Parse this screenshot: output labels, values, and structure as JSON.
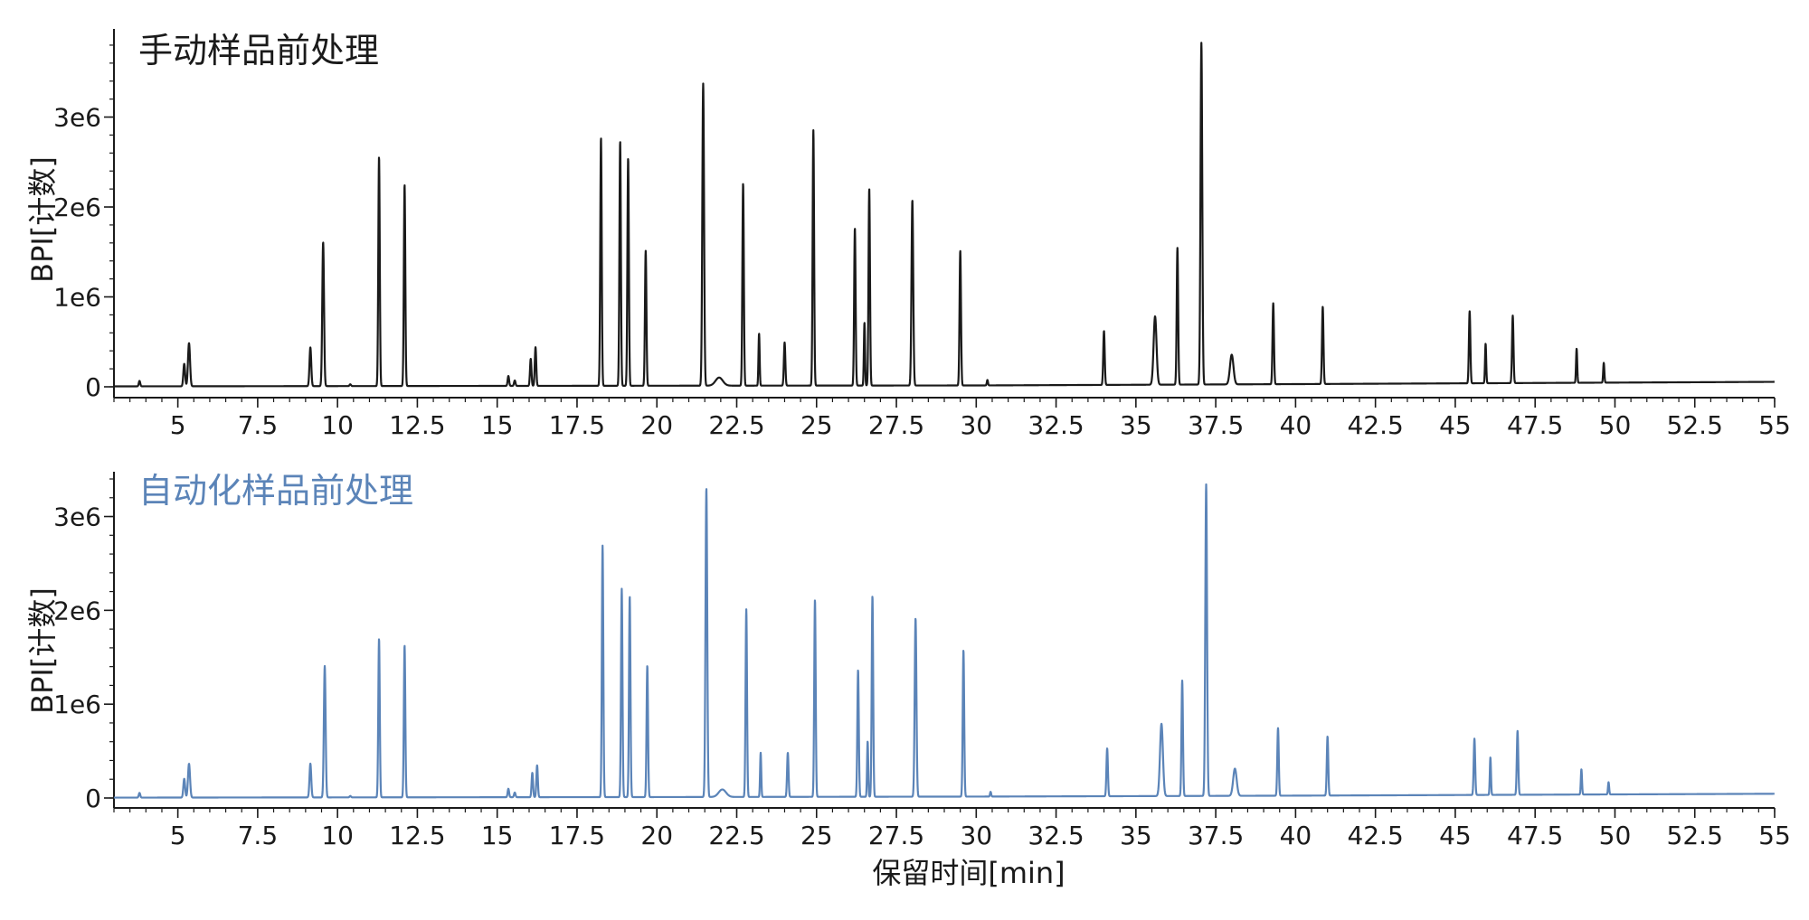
{
  "chart_data": [
    {
      "type": "line",
      "title": "手动样品前处理",
      "xlabel": "",
      "ylabel": "BPI[计数]",
      "xlim": [
        3,
        55
      ],
      "ylim": [
        0,
        3900000
      ],
      "x_ticks": [
        5,
        7.5,
        10,
        12.5,
        15,
        17.5,
        20,
        22.5,
        25,
        27.5,
        30,
        32.5,
        35,
        37.5,
        40,
        42.5,
        45,
        47.5,
        50,
        52.5,
        55
      ],
      "x_tick_labels": [
        "5",
        "7.5",
        "10",
        "12.5",
        "15",
        "17.5",
        "20",
        "22.5",
        "25",
        "27.5",
        "30",
        "32.5",
        "35",
        "37.5",
        "40",
        "42.5",
        "45",
        "47.5",
        "50",
        "52.5",
        "55"
      ],
      "y_ticks": [
        0,
        1000000,
        2000000,
        3000000
      ],
      "y_tick_labels": [
        "0",
        "1e6",
        "2e6",
        "3e6"
      ],
      "grid": false,
      "color": "#1a1a1a",
      "series": [
        {
          "baseline": [
            [
              3,
              5000
            ],
            [
              20,
              12000
            ],
            [
              30,
              15000
            ],
            [
              40,
              30000
            ],
            [
              55,
              55000
            ]
          ],
          "peaks": [
            {
              "rt": 3.8,
              "height": 60000,
              "width": 0.05
            },
            {
              "rt": 5.2,
              "height": 250000,
              "width": 0.06
            },
            {
              "rt": 5.35,
              "height": 480000,
              "width": 0.07
            },
            {
              "rt": 9.15,
              "height": 430000,
              "width": 0.06
            },
            {
              "rt": 9.55,
              "height": 1600000,
              "width": 0.06
            },
            {
              "rt": 10.4,
              "height": 20000,
              "width": 0.05
            },
            {
              "rt": 11.3,
              "height": 2550000,
              "width": 0.05
            },
            {
              "rt": 12.1,
              "height": 2240000,
              "width": 0.05
            },
            {
              "rt": 15.35,
              "height": 110000,
              "width": 0.05
            },
            {
              "rt": 15.55,
              "height": 60000,
              "width": 0.05
            },
            {
              "rt": 16.05,
              "height": 300000,
              "width": 0.05
            },
            {
              "rt": 16.2,
              "height": 430000,
              "width": 0.05
            },
            {
              "rt": 18.25,
              "height": 2760000,
              "width": 0.05
            },
            {
              "rt": 18.85,
              "height": 2720000,
              "width": 0.05
            },
            {
              "rt": 19.1,
              "height": 2530000,
              "width": 0.05
            },
            {
              "rt": 19.65,
              "height": 1500000,
              "width": 0.05
            },
            {
              "rt": 21.45,
              "height": 3360000,
              "width": 0.06
            },
            {
              "rt": 21.95,
              "height": 90000,
              "width": 0.25
            },
            {
              "rt": 22.7,
              "height": 2250000,
              "width": 0.05
            },
            {
              "rt": 23.2,
              "height": 580000,
              "width": 0.04
            },
            {
              "rt": 24.0,
              "height": 480000,
              "width": 0.05
            },
            {
              "rt": 24.9,
              "height": 2840000,
              "width": 0.05
            },
            {
              "rt": 26.2,
              "height": 1750000,
              "width": 0.05
            },
            {
              "rt": 26.5,
              "height": 700000,
              "width": 0.04
            },
            {
              "rt": 26.65,
              "height": 2190000,
              "width": 0.05
            },
            {
              "rt": 28.0,
              "height": 2060000,
              "width": 0.06
            },
            {
              "rt": 29.5,
              "height": 1500000,
              "width": 0.05
            },
            {
              "rt": 30.35,
              "height": 60000,
              "width": 0.04
            },
            {
              "rt": 34.0,
              "height": 600000,
              "width": 0.05
            },
            {
              "rt": 35.6,
              "height": 760000,
              "width": 0.1
            },
            {
              "rt": 36.3,
              "height": 1520000,
              "width": 0.05
            },
            {
              "rt": 37.05,
              "height": 3800000,
              "width": 0.06
            },
            {
              "rt": 38.0,
              "height": 330000,
              "width": 0.12
            },
            {
              "rt": 39.3,
              "height": 900000,
              "width": 0.05
            },
            {
              "rt": 40.85,
              "height": 860000,
              "width": 0.05
            },
            {
              "rt": 45.45,
              "height": 800000,
              "width": 0.05
            },
            {
              "rt": 45.95,
              "height": 440000,
              "width": 0.04
            },
            {
              "rt": 46.8,
              "height": 750000,
              "width": 0.05
            },
            {
              "rt": 48.8,
              "height": 380000,
              "width": 0.04
            },
            {
              "rt": 49.65,
              "height": 220000,
              "width": 0.04
            }
          ]
        }
      ]
    },
    {
      "type": "line",
      "title": "自动化样品前处理",
      "xlabel": "保留时间[min]",
      "ylabel": "BPI[计数]",
      "xlim": [
        3,
        55
      ],
      "ylim": [
        0,
        3400000
      ],
      "x_ticks": [
        5,
        7.5,
        10,
        12.5,
        15,
        17.5,
        20,
        22.5,
        25,
        27.5,
        30,
        32.5,
        35,
        37.5,
        40,
        42.5,
        45,
        47.5,
        50,
        52.5,
        55
      ],
      "x_tick_labels": [
        "5",
        "7.5",
        "10",
        "12.5",
        "15",
        "17.5",
        "20",
        "22.5",
        "25",
        "27.5",
        "30",
        "32.5",
        "35",
        "37.5",
        "40",
        "42.5",
        "45",
        "47.5",
        "50",
        "52.5",
        "55"
      ],
      "y_ticks": [
        0,
        1000000,
        2000000,
        3000000
      ],
      "y_tick_labels": [
        "0",
        "1e6",
        "2e6",
        "3e6"
      ],
      "grid": false,
      "color": "#5b84b8",
      "series": [
        {
          "baseline": [
            [
              3,
              4000
            ],
            [
              20,
              10000
            ],
            [
              30,
              15000
            ],
            [
              40,
              25000
            ],
            [
              55,
              45000
            ]
          ],
          "peaks": [
            {
              "rt": 3.8,
              "height": 50000,
              "width": 0.05
            },
            {
              "rt": 5.2,
              "height": 200000,
              "width": 0.06
            },
            {
              "rt": 5.35,
              "height": 360000,
              "width": 0.07
            },
            {
              "rt": 9.15,
              "height": 360000,
              "width": 0.06
            },
            {
              "rt": 9.6,
              "height": 1400000,
              "width": 0.06
            },
            {
              "rt": 10.4,
              "height": 15000,
              "width": 0.05
            },
            {
              "rt": 11.3,
              "height": 1690000,
              "width": 0.05
            },
            {
              "rt": 12.1,
              "height": 1620000,
              "width": 0.05
            },
            {
              "rt": 15.35,
              "height": 90000,
              "width": 0.05
            },
            {
              "rt": 15.55,
              "height": 50000,
              "width": 0.05
            },
            {
              "rt": 16.1,
              "height": 260000,
              "width": 0.05
            },
            {
              "rt": 16.25,
              "height": 340000,
              "width": 0.05
            },
            {
              "rt": 18.3,
              "height": 2680000,
              "width": 0.05
            },
            {
              "rt": 18.9,
              "height": 2220000,
              "width": 0.05
            },
            {
              "rt": 19.15,
              "height": 2140000,
              "width": 0.05
            },
            {
              "rt": 19.7,
              "height": 1400000,
              "width": 0.05
            },
            {
              "rt": 21.55,
              "height": 3290000,
              "width": 0.06
            },
            {
              "rt": 22.05,
              "height": 80000,
              "width": 0.25
            },
            {
              "rt": 22.8,
              "height": 2000000,
              "width": 0.05
            },
            {
              "rt": 23.25,
              "height": 470000,
              "width": 0.04
            },
            {
              "rt": 24.1,
              "height": 470000,
              "width": 0.05
            },
            {
              "rt": 24.95,
              "height": 2100000,
              "width": 0.05
            },
            {
              "rt": 26.3,
              "height": 1350000,
              "width": 0.05
            },
            {
              "rt": 26.6,
              "height": 590000,
              "width": 0.04
            },
            {
              "rt": 26.75,
              "height": 2140000,
              "width": 0.05
            },
            {
              "rt": 28.1,
              "height": 1900000,
              "width": 0.06
            },
            {
              "rt": 29.6,
              "height": 1560000,
              "width": 0.05
            },
            {
              "rt": 30.45,
              "height": 50000,
              "width": 0.04
            },
            {
              "rt": 34.1,
              "height": 510000,
              "width": 0.05
            },
            {
              "rt": 35.8,
              "height": 770000,
              "width": 0.1
            },
            {
              "rt": 36.45,
              "height": 1230000,
              "width": 0.05
            },
            {
              "rt": 37.2,
              "height": 3320000,
              "width": 0.06
            },
            {
              "rt": 38.1,
              "height": 290000,
              "width": 0.12
            },
            {
              "rt": 39.45,
              "height": 720000,
              "width": 0.05
            },
            {
              "rt": 41.0,
              "height": 630000,
              "width": 0.05
            },
            {
              "rt": 45.6,
              "height": 600000,
              "width": 0.05
            },
            {
              "rt": 46.1,
              "height": 400000,
              "width": 0.04
            },
            {
              "rt": 46.95,
              "height": 680000,
              "width": 0.05
            },
            {
              "rt": 48.95,
              "height": 270000,
              "width": 0.04
            },
            {
              "rt": 49.8,
              "height": 130000,
              "width": 0.04
            }
          ]
        }
      ]
    }
  ]
}
